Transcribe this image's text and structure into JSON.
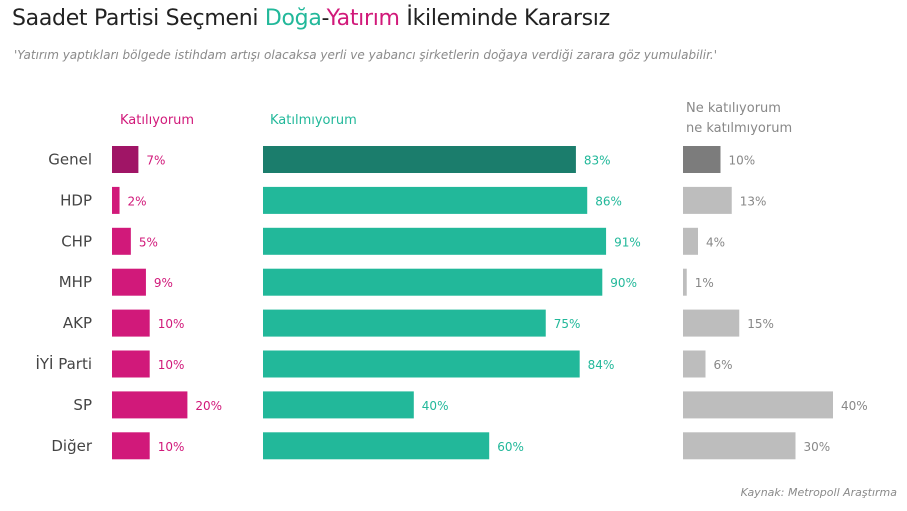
{
  "title": {
    "part1": "Saadet Partisi Seçmeni ",
    "part2": "Doğa",
    "part3": "-",
    "part4": "Yatırım",
    "part5": " İkileminde Kararsız"
  },
  "subtitle": "'Yatırım yaptıkları bölgede istihdam artışı olacaksa yerli ve yabancı şirketlerin doğaya verdiği zarara göz yumulabilir.'",
  "source": "Kaynak: Metropoll Araştırma",
  "colors": {
    "agree": "#d1197a",
    "agree_highlight": "#a01566",
    "disagree": "#22b89a",
    "disagree_highlight": "#1b7d6c",
    "neutral": "#bdbdbd",
    "neutral_highlight": "#7c7c7c",
    "label_neutral": "#888888"
  },
  "chart_data": {
    "type": "bar",
    "categories": [
      "Genel",
      "HDP",
      "CHP",
      "MHP",
      "AKP",
      "İYİ Parti",
      "SP",
      "Diğer"
    ],
    "highlight_category": "Genel",
    "series": [
      {
        "name": "Katılıyorum",
        "values": [
          7,
          2,
          5,
          9,
          10,
          10,
          20,
          10
        ]
      },
      {
        "name": "Katılmıyorum",
        "values": [
          83,
          86,
          91,
          90,
          75,
          84,
          40,
          60
        ]
      },
      {
        "name": "Ne katılıyorum ne katılmıyorum",
        "values": [
          10,
          13,
          4,
          1,
          15,
          6,
          40,
          30
        ]
      }
    ],
    "value_suffix": "%",
    "legend_lines": [
      [
        "Katılıyorum"
      ],
      [
        "Katılmıyorum"
      ],
      [
        "Ne katılıyorum",
        "ne katılmıyorum"
      ]
    ]
  }
}
